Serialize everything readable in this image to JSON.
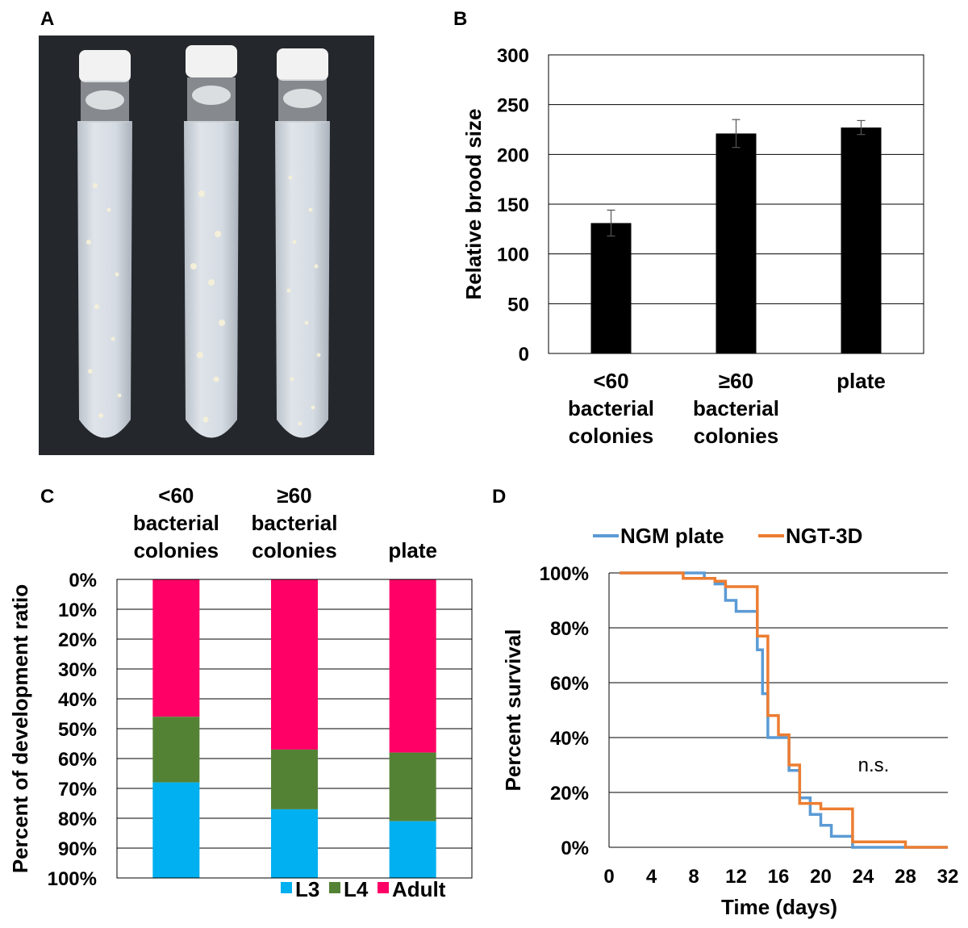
{
  "panel_labels": {
    "a": "A",
    "b": "B",
    "c": "C",
    "d": "D"
  },
  "colors": {
    "L3": "#00b0f0",
    "L4": "#548235",
    "Adult": "#ff0066",
    "NGM": "#5b9bd5",
    "NGT": "#ed7d31",
    "bar": "#000000"
  },
  "photo": {
    "description_icon": "test-tubes-photo"
  },
  "chart_data": [
    {
      "type": "bar",
      "panel": "B",
      "categories": [
        [
          "<60",
          "bacterial",
          "colonies"
        ],
        [
          "≥60",
          "bacterial",
          "colonies"
        ],
        [
          "plate"
        ]
      ],
      "values": [
        131,
        221,
        227
      ],
      "errors": [
        13,
        14,
        7
      ],
      "ylabel": "Relative brood size",
      "ylim": [
        0,
        300
      ],
      "yticks": [
        "0",
        "50",
        "100",
        "150",
        "200",
        "250",
        "300"
      ],
      "grid": true
    },
    {
      "type": "bar",
      "stacked": true,
      "panel": "C",
      "categories": [
        [
          "<60",
          "bacterial",
          "colonies"
        ],
        [
          "≥60",
          "bacterial",
          "colonies"
        ],
        [
          "plate"
        ]
      ],
      "series": [
        {
          "name": "L3",
          "values": [
            32,
            23,
            19
          ]
        },
        {
          "name": "L4",
          "values": [
            22,
            20,
            23
          ]
        },
        {
          "name": "Adult",
          "values": [
            46,
            57,
            58
          ]
        }
      ],
      "ylabel": "Percent of development ratio",
      "yticks": [
        "0%",
        "10%",
        "20%",
        "30%",
        "40%",
        "50%",
        "60%",
        "70%",
        "80%",
        "90%",
        "100%"
      ],
      "ylim": [
        0,
        100
      ],
      "legend_position": "bottom-right"
    },
    {
      "type": "line",
      "step": true,
      "panel": "D",
      "xlabel": "Time (days)",
      "ylabel": "Percent survival",
      "xlim": [
        0,
        32
      ],
      "ylim": [
        0,
        100
      ],
      "xticks": [
        "0",
        "4",
        "8",
        "12",
        "16",
        "20",
        "24",
        "28",
        "32"
      ],
      "yticks": [
        "0%",
        "20%",
        "40%",
        "60%",
        "80%",
        "100%"
      ],
      "annotation": "n.s.",
      "series": [
        {
          "name": "NGM plate",
          "points": [
            [
              1,
              100
            ],
            [
              9,
              100
            ],
            [
              9,
              98
            ],
            [
              10,
              98
            ],
            [
              10,
              96
            ],
            [
              11,
              96
            ],
            [
              11,
              90
            ],
            [
              12,
              90
            ],
            [
              12,
              86
            ],
            [
              14,
              86
            ],
            [
              14,
              72
            ],
            [
              14.5,
              72
            ],
            [
              14.5,
              56
            ],
            [
              15,
              56
            ],
            [
              15,
              40
            ],
            [
              17,
              40
            ],
            [
              17,
              28
            ],
            [
              18,
              28
            ],
            [
              18,
              18
            ],
            [
              19,
              18
            ],
            [
              19,
              12
            ],
            [
              20,
              12
            ],
            [
              20,
              8
            ],
            [
              21,
              8
            ],
            [
              21,
              4
            ],
            [
              23,
              4
            ],
            [
              23,
              0
            ],
            [
              32,
              0
            ]
          ]
        },
        {
          "name": "NGT-3D",
          "points": [
            [
              1,
              100
            ],
            [
              7,
              100
            ],
            [
              7,
              98
            ],
            [
              10,
              98
            ],
            [
              10,
              97
            ],
            [
              11,
              97
            ],
            [
              11,
              95
            ],
            [
              14,
              95
            ],
            [
              14,
              77
            ],
            [
              15,
              77
            ],
            [
              15,
              48
            ],
            [
              16,
              48
            ],
            [
              16,
              41
            ],
            [
              17,
              41
            ],
            [
              17,
              30
            ],
            [
              18,
              30
            ],
            [
              18,
              16
            ],
            [
              19,
              16
            ],
            [
              19,
              16
            ],
            [
              20,
              16
            ],
            [
              20,
              14
            ],
            [
              23,
              14
            ],
            [
              23,
              2
            ],
            [
              28,
              2
            ],
            [
              28,
              0
            ],
            [
              32,
              0
            ]
          ]
        }
      ]
    }
  ]
}
